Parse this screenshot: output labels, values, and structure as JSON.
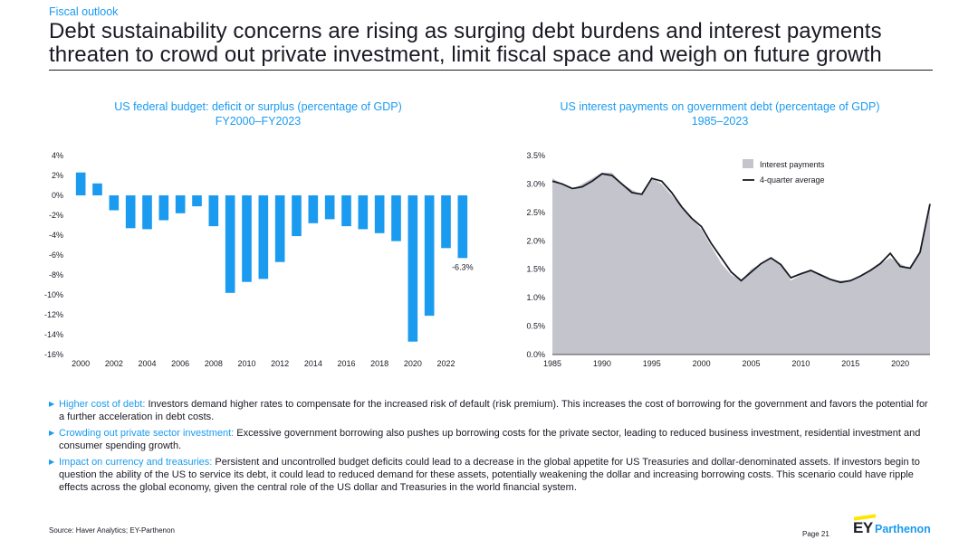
{
  "header": {
    "section": "Fiscal outlook",
    "headline": "Debt sustainability concerns are rising as surging debt burdens and interest payments threaten to crowd out private investment, limit fiscal space and weigh on future growth"
  },
  "chart_data": [
    {
      "type": "bar",
      "title": "US federal budget: deficit or surplus (percentage of GDP)",
      "subtitle": "FY2000–FY2023",
      "x": [
        2000,
        2001,
        2002,
        2003,
        2004,
        2005,
        2006,
        2007,
        2008,
        2009,
        2010,
        2011,
        2012,
        2013,
        2014,
        2015,
        2016,
        2017,
        2018,
        2019,
        2020,
        2021,
        2022,
        2023
      ],
      "values": [
        2.3,
        1.2,
        -1.5,
        -3.3,
        -3.4,
        -2.5,
        -1.8,
        -1.1,
        -3.1,
        -9.8,
        -8.7,
        -8.4,
        -6.7,
        -4.1,
        -2.8,
        -2.4,
        -3.1,
        -3.4,
        -3.8,
        -4.6,
        -14.7,
        -12.1,
        -5.3,
        -6.3
      ],
      "xticks": [
        "2000",
        "2002",
        "2004",
        "2006",
        "2008",
        "2010",
        "2012",
        "2014",
        "2016",
        "2018",
        "2020",
        "2022"
      ],
      "yticks": [
        "4%",
        "2%",
        "0%",
        "-2%",
        "-4%",
        "-6%",
        "-8%",
        "-10%",
        "-12%",
        "-14%",
        "-16%"
      ],
      "ylim": [
        -16,
        4
      ],
      "annotation": "-6.3%",
      "color": "#1a9bf0",
      "grid": false
    },
    {
      "type": "area",
      "title": "US interest payments on government debt (percentage of GDP)",
      "subtitle": "1985–2023",
      "x": [
        1985,
        1986,
        1987,
        1988,
        1989,
        1990,
        1991,
        1992,
        1993,
        1994,
        1995,
        1996,
        1997,
        1998,
        1999,
        2000,
        2001,
        2002,
        2003,
        2004,
        2005,
        2006,
        2007,
        2008,
        2009,
        2010,
        2011,
        2012,
        2013,
        2014,
        2015,
        2016,
        2017,
        2018,
        2019,
        2020,
        2021,
        2022,
        2023
      ],
      "xticks": [
        "1985",
        "1990",
        "1995",
        "2000",
        "2005",
        "2010",
        "2015",
        "2020"
      ],
      "yticks": [
        "0.0%",
        "0.5%",
        "1.0%",
        "1.5%",
        "2.0%",
        "2.5%",
        "3.0%",
        "3.5%"
      ],
      "ylim": [
        0,
        3.5
      ],
      "series": [
        {
          "name": "Interest payments",
          "kind": "area",
          "color": "#c4c4cc",
          "values": [
            3.1,
            3.0,
            2.9,
            3.0,
            3.1,
            3.2,
            3.2,
            3.0,
            2.9,
            2.8,
            3.1,
            3.0,
            2.8,
            2.6,
            2.4,
            2.2,
            1.9,
            1.6,
            1.4,
            1.3,
            1.5,
            1.6,
            1.7,
            1.6,
            1.3,
            1.4,
            1.5,
            1.4,
            1.3,
            1.3,
            1.3,
            1.4,
            1.5,
            1.6,
            1.7,
            1.6,
            1.5,
            1.8,
            2.6
          ]
        },
        {
          "name": "4-quarter average",
          "kind": "line",
          "color": "#1a1a24",
          "values": [
            3.05,
            3.0,
            2.92,
            2.95,
            3.05,
            3.18,
            3.15,
            3.0,
            2.85,
            2.82,
            3.1,
            3.05,
            2.85,
            2.6,
            2.4,
            2.25,
            1.95,
            1.7,
            1.45,
            1.3,
            1.45,
            1.6,
            1.7,
            1.58,
            1.35,
            1.42,
            1.48,
            1.4,
            1.32,
            1.27,
            1.3,
            1.38,
            1.48,
            1.6,
            1.78,
            1.55,
            1.52,
            1.8,
            2.65
          ]
        }
      ],
      "legend_position": "top-right",
      "grid": false
    }
  ],
  "bullets": [
    {
      "lead": "Higher cost of debt:",
      "text": " Investors demand higher rates to compensate for the increased risk of default (risk premium). This increases the cost of borrowing for the government and favors the potential for a further acceleration in debt costs."
    },
    {
      "lead": "Crowding out private sector investment:",
      "text": " Excessive government borrowing also pushes up borrowing costs for the private sector, leading to reduced business investment, residential investment and consumer spending growth."
    },
    {
      "lead": "Impact on currency and treasuries:",
      "text": " Persistent and uncontrolled budget deficits could lead to a decrease in the global appetite for US Treasuries and dollar-denominated assets. If investors begin to question the ability of the US to service its debt, it could lead to reduced demand for these assets, potentially weakening the dollar and increasing borrowing costs. This scenario could have ripple effects across the global economy, given the central role of the US dollar and Treasuries in the world financial system."
    }
  ],
  "footer": {
    "source": "Source: Haver Analytics; EY-Parthenon",
    "page": "Page 21",
    "logo_ey": "EY",
    "logo_partheon": "Parthenon"
  }
}
